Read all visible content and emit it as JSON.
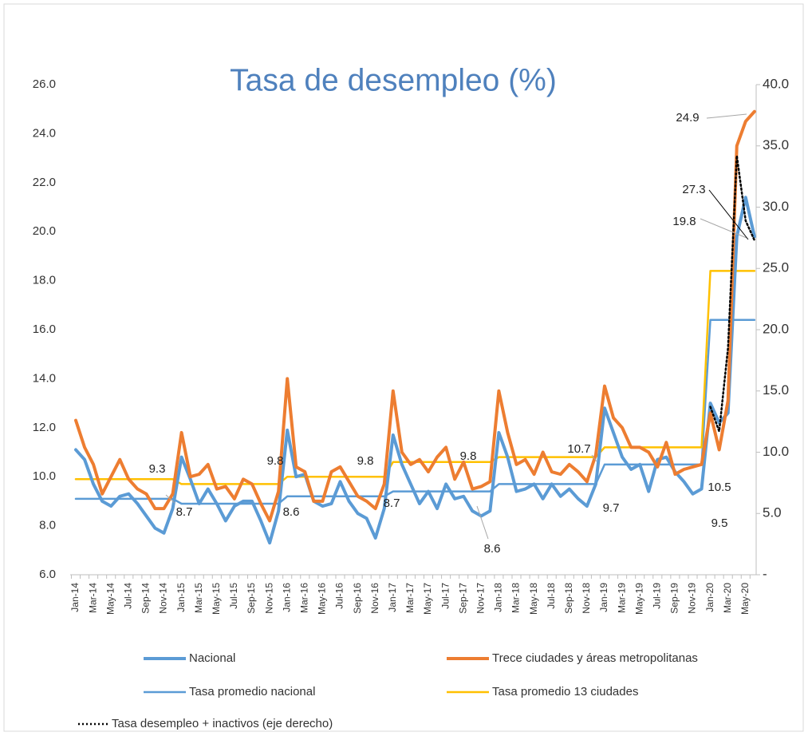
{
  "chart_data": {
    "type": "line",
    "title": "Tasa de desempleo (%)",
    "categories": [
      "Jan-14",
      null,
      "Mar-14",
      null,
      "May-14",
      null,
      "Jul-14",
      null,
      "Sep-14",
      null,
      "Nov-14",
      null,
      "Jan-15",
      null,
      "Mar-15",
      null,
      "May-15",
      null,
      "Jul-15",
      null,
      "Sep-15",
      null,
      "Nov-15",
      null,
      "Jan-16",
      null,
      "Mar-16",
      null,
      "May-16",
      null,
      "Jul-16",
      null,
      "Sep-16",
      null,
      "Nov-16",
      null,
      "Jan-17",
      null,
      "Mar-17",
      null,
      "May-17",
      null,
      "Jul-17",
      null,
      "Sep-17",
      null,
      "Nov-17",
      null,
      "Jan-18",
      null,
      "Mar-18",
      null,
      "May-18",
      null,
      "Jul-18",
      null,
      "Sep-18",
      null,
      "Nov-18",
      null,
      "Jan-19",
      null,
      "Mar-19",
      null,
      "May-19",
      null,
      "Jul-19",
      null,
      "Sep-19",
      null,
      "Nov-19",
      null,
      "Jan-20",
      null,
      "Mar-20",
      null,
      "May-20",
      null
    ],
    "series": [
      {
        "name": "Nacional",
        "color": "#5b9bd5",
        "values": [
          11.1,
          10.7,
          9.7,
          9.0,
          8.8,
          9.2,
          9.3,
          8.9,
          8.4,
          7.9,
          7.7,
          8.7,
          10.8,
          9.9,
          8.9,
          9.5,
          8.9,
          8.2,
          8.8,
          9.0,
          9.0,
          8.2,
          7.3,
          8.6,
          11.9,
          10.0,
          10.1,
          9.0,
          8.8,
          8.9,
          9.8,
          9.0,
          8.5,
          8.3,
          7.5,
          8.7,
          11.7,
          10.5,
          9.7,
          8.9,
          9.4,
          8.7,
          9.7,
          9.1,
          9.2,
          8.6,
          8.4,
          8.6,
          11.8,
          10.8,
          9.4,
          9.5,
          9.7,
          9.1,
          9.7,
          9.2,
          9.5,
          9.1,
          8.8,
          9.7,
          12.8,
          11.8,
          10.8,
          10.3,
          10.5,
          9.4,
          10.7,
          10.8,
          10.2,
          9.8,
          9.3,
          9.5,
          13.0,
          12.2,
          12.6,
          19.8,
          21.4,
          19.8
        ]
      },
      {
        "name": "Trece ciudades y áreas metropolitanas",
        "color": "#ed7d31",
        "values": [
          12.3,
          11.2,
          10.5,
          9.3,
          10.0,
          10.7,
          9.9,
          9.5,
          9.3,
          8.7,
          8.7,
          9.3,
          11.8,
          10.0,
          10.1,
          10.5,
          9.5,
          9.6,
          9.1,
          9.9,
          9.7,
          8.9,
          8.2,
          9.4,
          14.0,
          10.4,
          10.2,
          9.0,
          9.0,
          10.2,
          10.4,
          9.8,
          9.2,
          9.0,
          8.7,
          9.7,
          13.5,
          11.0,
          10.5,
          10.7,
          10.2,
          10.8,
          11.2,
          9.9,
          10.6,
          9.5,
          9.6,
          9.8,
          13.5,
          11.8,
          10.5,
          10.7,
          10.1,
          11.0,
          10.2,
          10.1,
          10.5,
          10.2,
          9.8,
          10.9,
          13.7,
          12.4,
          12.0,
          11.2,
          11.2,
          11.0,
          10.4,
          11.4,
          10.1,
          10.3,
          10.4,
          10.5,
          12.6,
          11.1,
          13.1,
          23.5,
          24.5,
          24.9
        ]
      },
      {
        "name": "Tasa promedio nacional",
        "color": "#5b9bd5",
        "values": [
          9.1,
          9.1,
          9.1,
          9.1,
          9.1,
          9.1,
          9.1,
          9.1,
          9.1,
          9.1,
          9.1,
          9.1,
          8.9,
          8.9,
          8.9,
          8.9,
          8.9,
          8.9,
          8.9,
          8.9,
          8.9,
          8.9,
          8.9,
          8.9,
          9.2,
          9.2,
          9.2,
          9.2,
          9.2,
          9.2,
          9.2,
          9.2,
          9.2,
          9.2,
          9.2,
          9.2,
          9.4,
          9.4,
          9.4,
          9.4,
          9.4,
          9.4,
          9.4,
          9.4,
          9.4,
          9.4,
          9.4,
          9.4,
          9.7,
          9.7,
          9.7,
          9.7,
          9.7,
          9.7,
          9.7,
          9.7,
          9.7,
          9.7,
          9.7,
          9.7,
          10.5,
          10.5,
          10.5,
          10.5,
          10.5,
          10.5,
          10.5,
          10.5,
          10.5,
          10.5,
          10.5,
          10.5,
          16.4,
          16.4,
          16.4,
          16.4,
          16.4,
          16.4
        ]
      },
      {
        "name": "Tasa promedio 13 ciudades",
        "color": "#ffc000",
        "values": [
          9.9,
          9.9,
          9.9,
          9.9,
          9.9,
          9.9,
          9.9,
          9.9,
          9.9,
          9.9,
          9.9,
          9.9,
          9.7,
          9.7,
          9.7,
          9.7,
          9.7,
          9.7,
          9.7,
          9.7,
          9.7,
          9.7,
          9.7,
          9.7,
          10.0,
          10.0,
          10.0,
          10.0,
          10.0,
          10.0,
          10.0,
          10.0,
          10.0,
          10.0,
          10.0,
          10.0,
          10.6,
          10.6,
          10.6,
          10.6,
          10.6,
          10.6,
          10.6,
          10.6,
          10.6,
          10.6,
          10.6,
          10.6,
          10.8,
          10.8,
          10.8,
          10.8,
          10.8,
          10.8,
          10.8,
          10.8,
          10.8,
          10.8,
          10.8,
          10.8,
          11.2,
          11.2,
          11.2,
          11.2,
          11.2,
          11.2,
          11.2,
          11.2,
          11.2,
          11.2,
          11.2,
          11.2,
          18.4,
          18.4,
          18.4,
          18.4,
          18.4,
          18.4
        ]
      },
      {
        "name": "Tasa desempleo + inactivos (eje derecho)",
        "color": "#000000",
        "axis": "y2",
        "dashed": true,
        "values": [
          null,
          null,
          null,
          null,
          null,
          null,
          null,
          null,
          null,
          null,
          null,
          null,
          null,
          null,
          null,
          null,
          null,
          null,
          null,
          null,
          null,
          null,
          null,
          null,
          null,
          null,
          null,
          null,
          null,
          null,
          null,
          null,
          null,
          null,
          null,
          null,
          null,
          null,
          null,
          null,
          null,
          null,
          null,
          null,
          null,
          null,
          null,
          null,
          null,
          null,
          null,
          null,
          null,
          null,
          null,
          null,
          null,
          null,
          null,
          null,
          null,
          null,
          null,
          null,
          null,
          null,
          null,
          null,
          null,
          null,
          null,
          null,
          13.7,
          11.7,
          18.5,
          34.2,
          28.9,
          27.3
        ]
      }
    ],
    "ylim": [
      6,
      26
    ],
    "yticks": [
      {
        "value": 6,
        "label": "6.0"
      },
      {
        "value": 8,
        "label": "8.0"
      },
      {
        "value": 10,
        "label": "10.0"
      },
      {
        "value": 12,
        "label": "12.0"
      },
      {
        "value": 14,
        "label": "14.0"
      },
      {
        "value": 16,
        "label": "16.0"
      },
      {
        "value": 18,
        "label": "18.0"
      },
      {
        "value": 20,
        "label": "20.0"
      },
      {
        "value": 22,
        "label": "22.0"
      },
      {
        "value": 24,
        "label": "24.0"
      },
      {
        "value": 26,
        "label": "26.0"
      }
    ],
    "y2lim": [
      0,
      40
    ],
    "y2ticks": [
      {
        "value": 0,
        "label": "-"
      },
      {
        "value": 5,
        "label": "5.0"
      },
      {
        "value": 10,
        "label": "10.0"
      },
      {
        "value": 15,
        "label": "15.0"
      },
      {
        "value": 20,
        "label": "20.0"
      },
      {
        "value": 25,
        "label": "25.0"
      },
      {
        "value": 30,
        "label": "30.0"
      },
      {
        "value": 35,
        "label": "35.0"
      },
      {
        "value": 40,
        "label": "40.0"
      }
    ],
    "annotations": [
      "9.3",
      "8.7",
      "9.8",
      "8.6",
      "9.8",
      "8.7",
      "9.8",
      "8.6",
      "10.7",
      "9.7",
      "10.5",
      "9.5",
      "19.8",
      "27.3",
      "24.9"
    ],
    "legend": "bottom"
  }
}
